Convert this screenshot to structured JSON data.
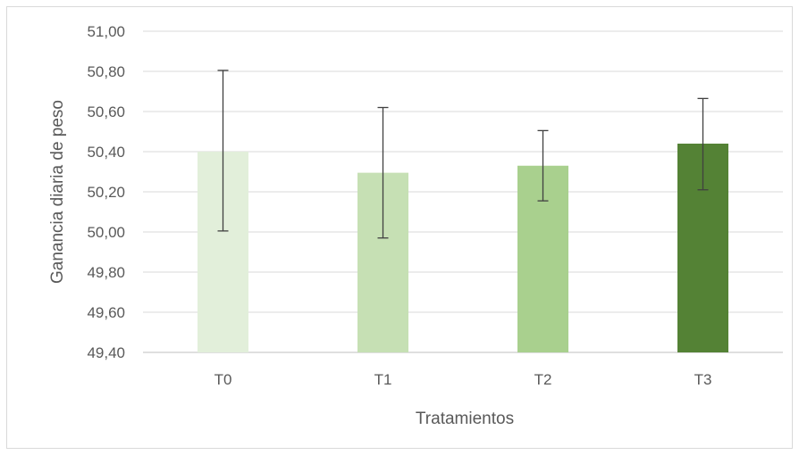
{
  "chart_data": {
    "type": "bar",
    "categories": [
      "T0",
      "T1",
      "T2",
      "T3"
    ],
    "values": [
      50.4,
      50.295,
      50.33,
      50.44
    ],
    "error_low": [
      50.005,
      49.97,
      50.155,
      50.21
    ],
    "error_high": [
      50.805,
      50.62,
      50.505,
      50.665
    ],
    "bar_colors": [
      "#e2efda",
      "#c6e0b4",
      "#a9d08e",
      "#548235"
    ],
    "xlabel": "Tratamientos",
    "ylabel": "Ganancia diaria de peso",
    "ylim": [
      49.4,
      51.0
    ],
    "yticks": [
      "49,40",
      "49,60",
      "49,80",
      "50,00",
      "50,20",
      "50,40",
      "50,60",
      "50,80",
      "51,00"
    ],
    "grid": true,
    "legend": "none"
  }
}
